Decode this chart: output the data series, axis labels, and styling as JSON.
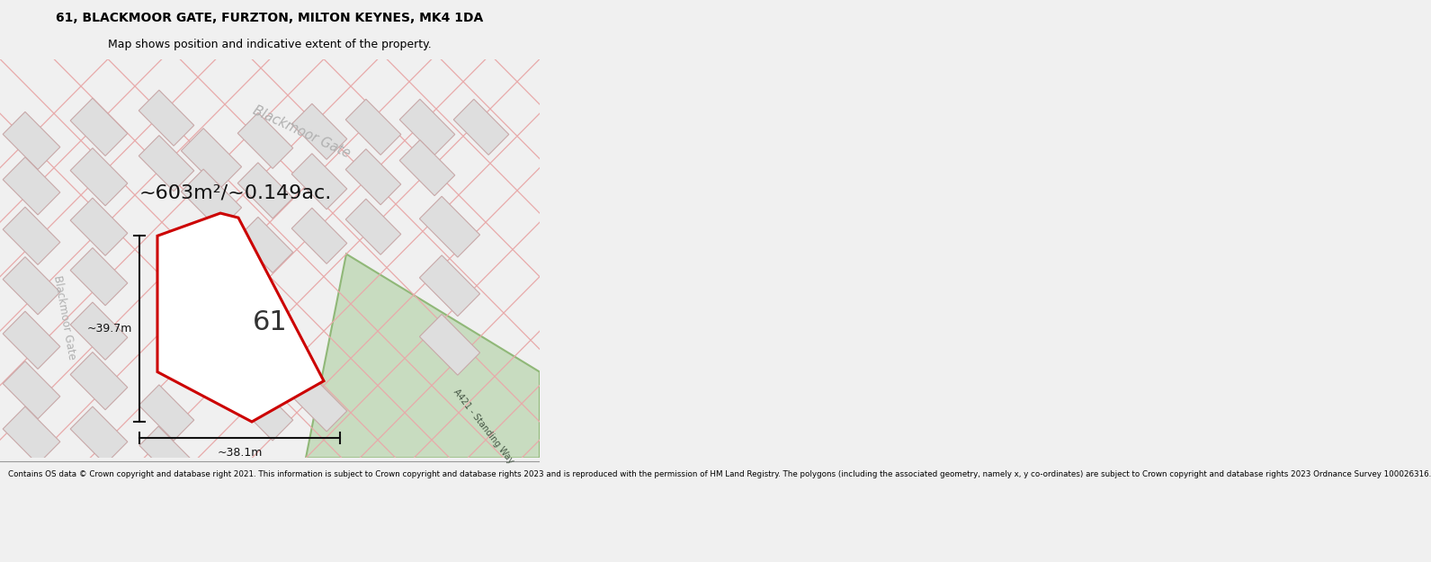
{
  "title_line1": "61, BLACKMOOR GATE, FURZTON, MILTON KEYNES, MK4 1DA",
  "title_line2": "Map shows position and indicative extent of the property.",
  "area_label": "~603m²/~0.149ac.",
  "plot_number": "61",
  "dim_height": "~39.7m",
  "dim_width": "~38.1m",
  "street_name_top": "Blackmoor Gate",
  "street_name_left": "Blackmoor Gate",
  "road_name_right": "A421 - Standing Way",
  "footer_text": "Contains OS data © Crown copyright and database right 2021. This information is subject to Crown copyright and database rights 2023 and is reproduced with the permission of HM Land Registry. The polygons (including the associated geometry, namely x, y co-ordinates) are subject to Crown copyright and database rights 2023 Ordnance Survey 100026316.",
  "bg_color": "#f0f0f0",
  "map_bg": "#f0f0f0",
  "road_green_color": "#c8dcc0",
  "road_green_border": "#90b878",
  "plot_outline_color": "#cc0000",
  "building_fill": "#dedede",
  "building_outline": "#c8a8a8",
  "street_line_color": "#e8aaaa",
  "dim_line_color": "#111111",
  "footer_bg": "#ffffff",
  "title_fontsize": 10,
  "subtitle_fontsize": 9,
  "area_fontsize": 16,
  "plot_num_fontsize": 22
}
